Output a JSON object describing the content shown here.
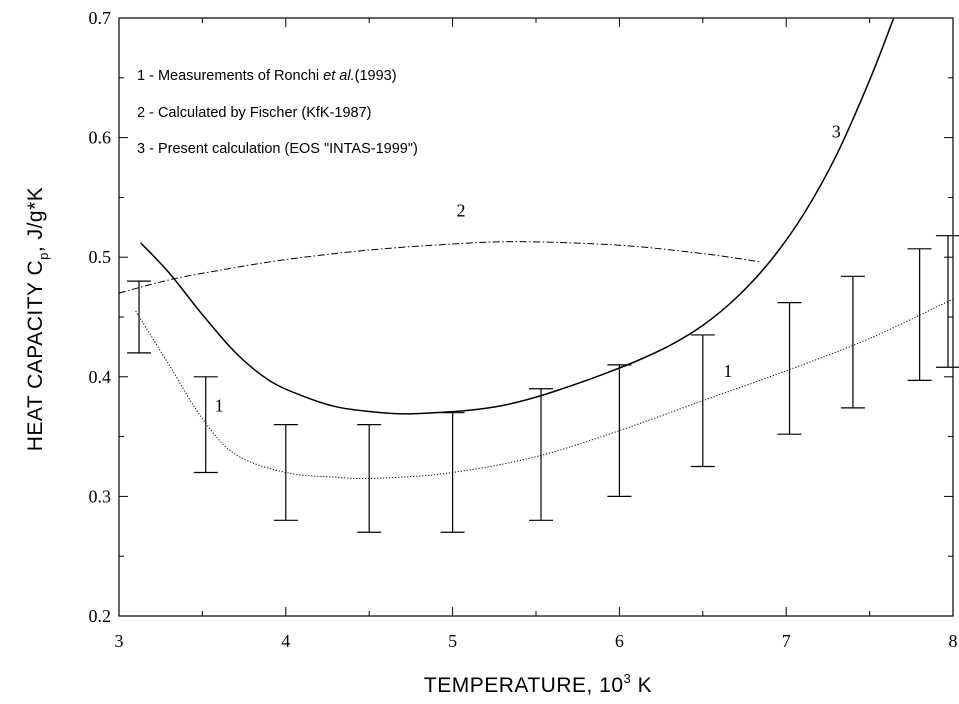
{
  "chart_data": {
    "type": "line",
    "xlabel_main": "TEMPERATURE, 10",
    "xlabel_sup": "3",
    "xlabel_tail": " K",
    "ylabel_main": "HEAT CAPACITY C",
    "ylabel_sub": "p",
    "ylabel_tail": ", J/g*K",
    "xlim": [
      3,
      8
    ],
    "ylim": [
      0.2,
      0.7
    ],
    "x_ticks": [
      "3",
      "4",
      "5",
      "6",
      "7",
      "8"
    ],
    "y_ticks": [
      "0.2",
      "0.3",
      "0.4",
      "0.5",
      "0.6",
      "0.7"
    ],
    "legend": [
      {
        "prefix": "1 - Measurements of Ronchi ",
        "italic": "et al.",
        "suffix": "(1993)"
      },
      {
        "prefix": "2 - Calculated by Fischer (KfK-1987)",
        "italic": "",
        "suffix": ""
      },
      {
        "prefix": "3 - Present calculation (EOS \"INTAS-1999\")",
        "italic": "",
        "suffix": ""
      }
    ],
    "curve_labels": [
      {
        "text": "1",
        "x": 3.6,
        "y": 0.371
      },
      {
        "text": "1",
        "x": 6.65,
        "y": 0.4
      },
      {
        "text": "2",
        "x": 5.05,
        "y": 0.534
      },
      {
        "text": "3",
        "x": 7.3,
        "y": 0.6
      }
    ],
    "series": [
      {
        "name": "1",
        "style": "dotted",
        "x": [
          3.1,
          3.3,
          3.5,
          3.7,
          4.0,
          4.3,
          4.5,
          4.8,
          5.0,
          5.3,
          5.6,
          6.0,
          6.5,
          7.0,
          7.5,
          8.0
        ],
        "y": [
          0.455,
          0.41,
          0.365,
          0.335,
          0.32,
          0.316,
          0.315,
          0.317,
          0.32,
          0.327,
          0.337,
          0.355,
          0.38,
          0.405,
          0.432,
          0.465
        ]
      },
      {
        "name": "2",
        "style": "dashdot",
        "x": [
          3.0,
          3.3,
          3.6,
          4.0,
          4.5,
          5.0,
          5.4,
          6.0,
          6.5,
          6.85
        ],
        "y": [
          0.47,
          0.481,
          0.489,
          0.498,
          0.506,
          0.511,
          0.513,
          0.51,
          0.503,
          0.496
        ]
      },
      {
        "name": "3",
        "style": "solid",
        "x": [
          3.13,
          3.3,
          3.5,
          3.7,
          3.9,
          4.1,
          4.3,
          4.5,
          4.7,
          4.9,
          5.1,
          5.3,
          5.5,
          5.7,
          5.9,
          6.1,
          6.3,
          6.5,
          6.7,
          6.9,
          7.1,
          7.3,
          7.5,
          7.65
        ],
        "y": [
          0.512,
          0.487,
          0.452,
          0.42,
          0.397,
          0.384,
          0.375,
          0.371,
          0.369,
          0.37,
          0.372,
          0.376,
          0.383,
          0.392,
          0.402,
          0.413,
          0.426,
          0.443,
          0.466,
          0.496,
          0.535,
          0.585,
          0.648,
          0.702
        ]
      }
    ],
    "error_bars": [
      {
        "x": 3.12,
        "low": 0.42,
        "high": 0.48
      },
      {
        "x": 3.52,
        "low": 0.32,
        "high": 0.4
      },
      {
        "x": 4.0,
        "low": 0.28,
        "high": 0.36
      },
      {
        "x": 4.5,
        "low": 0.27,
        "high": 0.36
      },
      {
        "x": 5.0,
        "low": 0.27,
        "high": 0.37
      },
      {
        "x": 5.53,
        "low": 0.28,
        "high": 0.39
      },
      {
        "x": 6.0,
        "low": 0.3,
        "high": 0.41
      },
      {
        "x": 6.5,
        "low": 0.325,
        "high": 0.435
      },
      {
        "x": 7.02,
        "low": 0.352,
        "high": 0.462
      },
      {
        "x": 7.4,
        "low": 0.374,
        "high": 0.484
      },
      {
        "x": 7.8,
        "low": 0.397,
        "high": 0.507
      },
      {
        "x": 7.97,
        "low": 0.408,
        "high": 0.518
      }
    ]
  }
}
